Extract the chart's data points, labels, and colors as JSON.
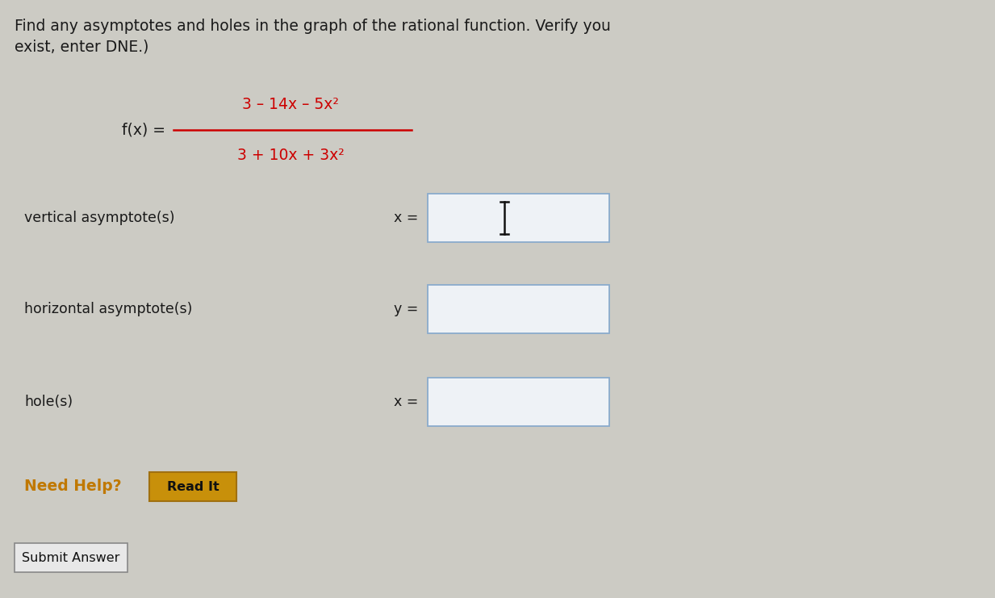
{
  "bg_color": "#cccbc4",
  "title_line1": "Find any asymptotes and holes in the graph of the rational function. Verify you",
  "title_line2": "exist, enter DNE.)",
  "func_label": "f(x) =",
  "numerator": "3 – 14x – 5x²",
  "denominator": "3 + 10x + 3x²",
  "label_vertical": "vertical asymptote(s)",
  "label_horizontal": "horizontal asymptote(s)",
  "label_hole": "hole(s)",
  "var_vertical": "x =",
  "var_horizontal": "y =",
  "var_hole": "x =",
  "need_help_text": "Need Help?",
  "read_it_text": "Read It",
  "submit_text": "Submit Answer",
  "title_color": "#1a1a1a",
  "label_color": "#1a1a1a",
  "need_help_color": "#c07800",
  "box_border_color": "#8aabcc",
  "box_fill_color": "#eef2f6",
  "read_it_bg": "#c8900a",
  "read_it_border": "#a07010",
  "submit_bg": "#e8e8e8",
  "submit_border": "#888888",
  "fraction_color": "#cc0000",
  "cursor_color": "#111111",
  "fraction_label_color": "#1a1a1a",
  "fig_width": 12.33,
  "fig_height": 7.41,
  "dpi": 100
}
